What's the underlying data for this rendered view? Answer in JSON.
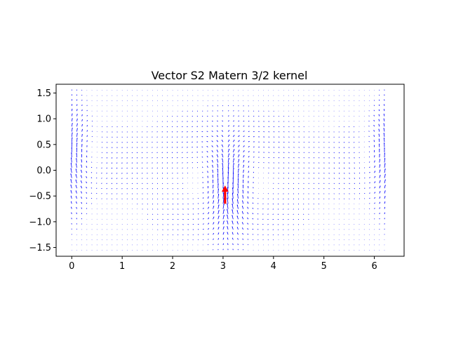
{
  "chart_data": {
    "type": "quiver",
    "title": "Vector S2 Matern 3/2 kernel",
    "xlabel": "",
    "ylabel": "",
    "xlim": [
      -0.31,
      6.59
    ],
    "ylim": [
      -1.67,
      1.67
    ],
    "x_ticks": [
      "0",
      "1",
      "2",
      "3",
      "4",
      "5",
      "6"
    ],
    "y_ticks": [
      "1.5",
      "1.0",
      "0.5",
      "0.0",
      "−0.5",
      "−1.0",
      "−1.5"
    ],
    "grid": false,
    "legend": "none",
    "field_grid": {
      "x_range": [
        0.0,
        6.2
      ],
      "y_range": [
        -1.55,
        1.55
      ],
      "columns": 63,
      "rows": 32
    },
    "highlight_vector": {
      "x": 3.04,
      "y": -0.65,
      "u": 0.0,
      "v": 1.0,
      "color": "#ff0000"
    },
    "field_color": "#0000ff"
  }
}
